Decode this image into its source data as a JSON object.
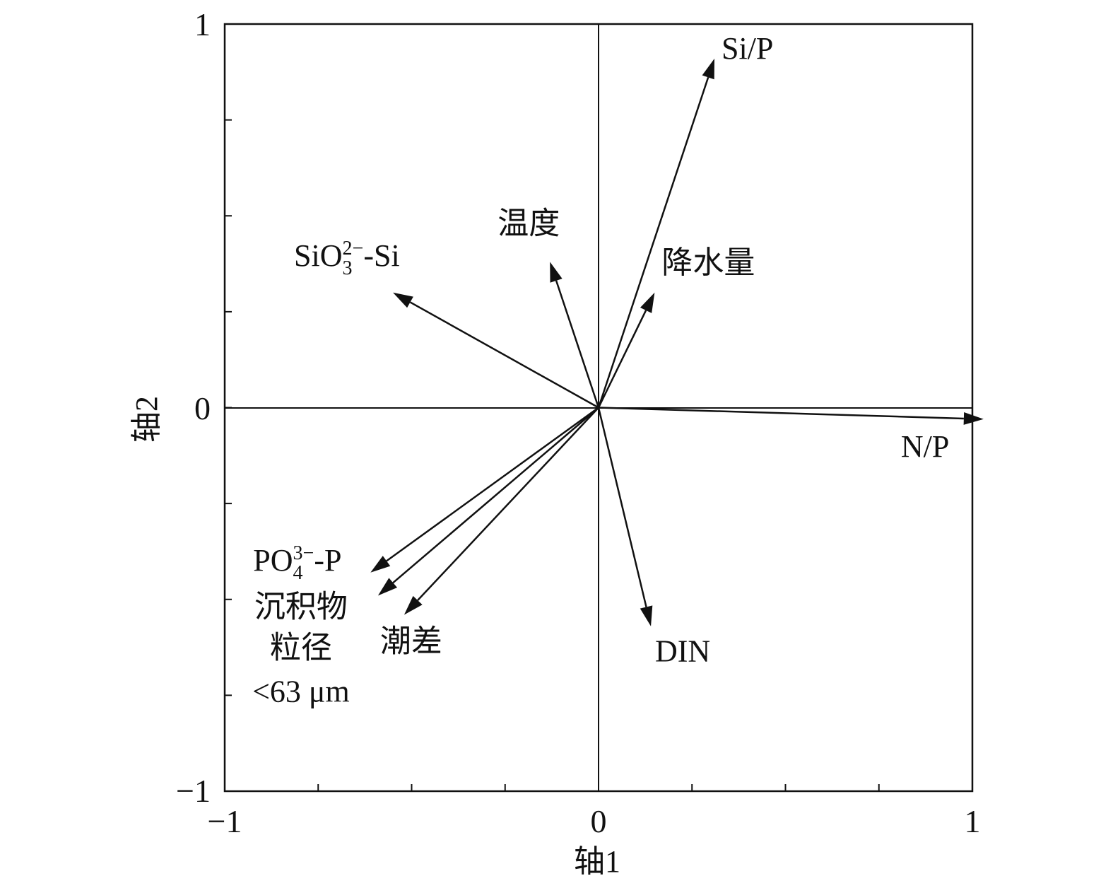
{
  "chart_data": {
    "type": "biplot",
    "xlabel": "轴1",
    "ylabel": "轴2",
    "xlim": [
      -1,
      1
    ],
    "ylim": [
      -1,
      1
    ],
    "x_tick_labels": [
      "−1",
      "0",
      "1"
    ],
    "y_tick_labels": [
      "1",
      "0",
      "−1"
    ],
    "grid": false,
    "vectors": [
      {
        "name": "Si/P",
        "lines": [
          "Si/P"
        ],
        "x": 0.31,
        "y": 0.91
      },
      {
        "name": "温度",
        "lines": [
          "温度"
        ],
        "x": -0.13,
        "y": 0.38
      },
      {
        "name": "SiO3 2−-Si",
        "base": "SiO",
        "sub": "3",
        "sup": "2−",
        "suffix": "-Si",
        "x": -0.55,
        "y": 0.3
      },
      {
        "name": "降水量",
        "lines": [
          "降水量"
        ],
        "x": 0.15,
        "y": 0.3
      },
      {
        "name": "N/P",
        "lines": [
          "N/P"
        ],
        "x": 1.03,
        "y": -0.03
      },
      {
        "name": "PO4 3−-P",
        "base": "PO",
        "sub": "4",
        "sup": "3−",
        "suffix": "-P",
        "x": -0.61,
        "y": -0.43
      },
      {
        "name": "沉积物粒径<63 μm",
        "lines": [
          "沉积物",
          "粒径",
          "<63 μm"
        ],
        "x": -0.59,
        "y": -0.49
      },
      {
        "name": "潮差",
        "lines": [
          "潮差"
        ],
        "x": -0.52,
        "y": -0.54
      },
      {
        "name": "DIN",
        "lines": [
          "DIN"
        ],
        "x": 0.14,
        "y": -0.57
      }
    ]
  }
}
